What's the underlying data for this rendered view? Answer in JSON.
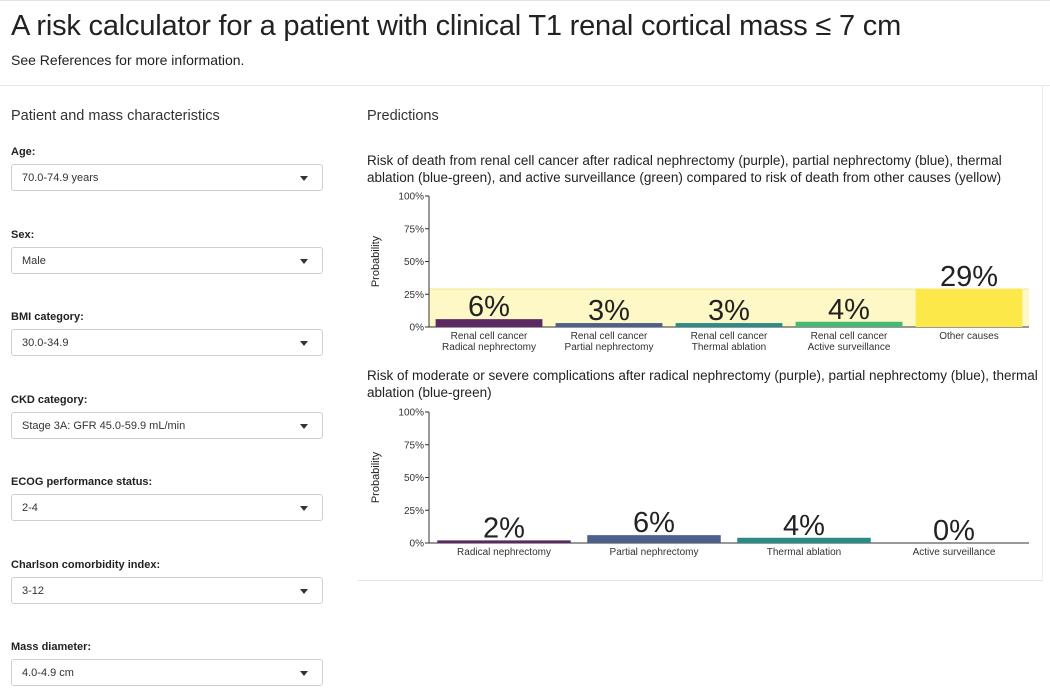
{
  "page": {
    "title": "A risk calculator for a patient with clinical T1 renal cortical mass ≤ 7 cm",
    "subtitle": "See References for more information."
  },
  "sidebar": {
    "title": "Patient and mass characteristics",
    "fields": [
      {
        "label": "Age:",
        "value": "70.0-74.9 years"
      },
      {
        "label": "Sex:",
        "value": "Male"
      },
      {
        "label": "BMI category:",
        "value": "30.0-34.9"
      },
      {
        "label": "CKD category:",
        "value": "Stage 3A: GFR 45.0-59.9 mL/min"
      },
      {
        "label": "ECOG performance status:",
        "value": "2-4"
      },
      {
        "label": "Charlson comorbidity index:",
        "value": "3-12"
      },
      {
        "label": "Mass diameter:",
        "value": "4.0-4.9 cm"
      }
    ]
  },
  "main": {
    "title": "Predictions"
  },
  "chart_data": [
    {
      "type": "bar",
      "title": "Risk of death from renal cell cancer after radical nephrectomy (purple), partial nephrectomy (blue), thermal ablation (blue-green), and active surveillance (green) compared to risk of death from other causes (yellow)",
      "ylabel": "Probability",
      "ylim": [
        0,
        100
      ],
      "yticks": [
        "0%",
        "25%",
        "50%",
        "75%",
        "100%"
      ],
      "categories": [
        [
          "Renal cell cancer",
          "Radical nephrectomy"
        ],
        [
          "Renal cell cancer",
          "Partial nephrectomy"
        ],
        [
          "Renal cell cancer",
          "Thermal ablation"
        ],
        [
          "Renal cell cancer",
          "Active surveillance"
        ],
        [
          "Other causes"
        ]
      ],
      "values": [
        6,
        3,
        3,
        4,
        29
      ],
      "data_labels": [
        "6%",
        "3%",
        "3%",
        "4%",
        "29%"
      ],
      "colors": [
        "#5b2a64",
        "#4d5f8c",
        "#2a8c87",
        "#49b876",
        "#fde84a"
      ],
      "reference_band": {
        "from": 0,
        "to": 29,
        "color": "#fdf8c6"
      }
    },
    {
      "type": "bar",
      "title": "Risk of moderate or severe complications after radical nephrectomy (purple), partial nephrectomy (blue), thermal ablation (blue-green)",
      "ylabel": "Probability",
      "ylim": [
        0,
        100
      ],
      "yticks": [
        "0%",
        "25%",
        "50%",
        "75%",
        "100%"
      ],
      "categories": [
        [
          "Radical nephrectomy"
        ],
        [
          "Partial nephrectomy"
        ],
        [
          "Thermal ablation"
        ],
        [
          "Active surveillance"
        ]
      ],
      "values": [
        2,
        6,
        4,
        0
      ],
      "data_labels": [
        "2%",
        "6%",
        "4%",
        "0%"
      ],
      "colors": [
        "#5b2a64",
        "#4d5f8c",
        "#2a8c87",
        "#49b876"
      ]
    }
  ]
}
